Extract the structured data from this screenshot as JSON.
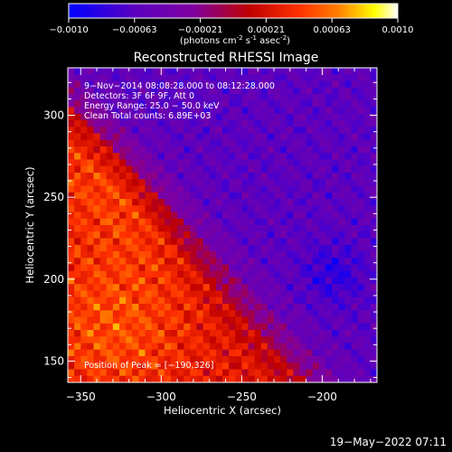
{
  "colorbar": {
    "ticks": [
      "-0.0010",
      "-0.00063",
      "-0.00021",
      "0.00021",
      "0.00063",
      "0.0010"
    ],
    "units": "(photons cm",
    "units_sup1": "-2",
    "units_mid": " s",
    "units_sup2": "-1",
    "units_end": " asec",
    "units_sup3": "-2",
    "units_close": ")"
  },
  "chart_data": {
    "type": "heatmap",
    "title": "Reconstructed RHESSI Image",
    "xlabel": "Heliocentric X (arcsec)",
    "ylabel": "Heliocentric Y (arcsec)",
    "xlim": [
      -358,
      -166
    ],
    "ylim": [
      137,
      329
    ],
    "xticks": [
      -350,
      -300,
      -250,
      -200
    ],
    "yticks": [
      150,
      200,
      250,
      300
    ],
    "xtick_labels": [
      "−350",
      "−300",
      "−250",
      "−200"
    ],
    "ytick_labels": [
      "150",
      "200",
      "250",
      "300"
    ],
    "color_range": [
      -0.001,
      0.001
    ],
    "colormap": [
      "#0000ff",
      "#5a00c0",
      "#8000a0",
      "#c00000",
      "#ff3000",
      "#ff8000",
      "#ffff00",
      "#ffffff"
    ],
    "annotations": [
      "9−Nov−2014 08:08:28.000 to 08:12:28.000",
      "Detectors: 3F 6F 9F, Att 0",
      "Energy Range: 25.0 − 50.0 keV",
      "Clean     Total counts: 6.89E+03"
    ],
    "peak_label": "Position of Peak = [−190,326]",
    "peak_position": [
      -190,
      326
    ]
  },
  "footer": {
    "date": "19−May−2022 07:11"
  }
}
